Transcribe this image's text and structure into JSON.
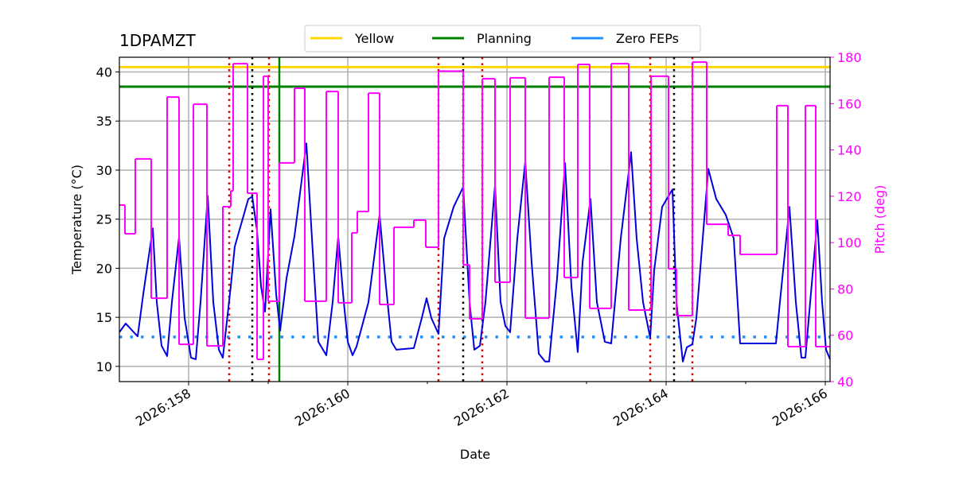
{
  "chart_data": {
    "type": "line",
    "title": "1DPAMZT",
    "xlabel": "Date",
    "ylabel": "Temperature (°C)",
    "y2label": "Pitch (deg)",
    "y2color": "#ff00ff",
    "xlim": [
      157.13,
      166.06
    ],
    "xticks": [
      {
        "value": 158,
        "label": "2026:158"
      },
      {
        "value": 160,
        "label": "2026:160"
      },
      {
        "value": 162,
        "label": "2026:162"
      },
      {
        "value": 164,
        "label": "2026:164"
      },
      {
        "value": 166,
        "label": "2026:166"
      }
    ],
    "xminorticks": [
      159,
      161,
      163,
      165
    ],
    "ylim": [
      8.45,
      41.5
    ],
    "yticks": [
      10,
      15,
      20,
      25,
      30,
      35,
      40
    ],
    "y2lim": [
      40,
      180
    ],
    "y2ticks": [
      40,
      60,
      80,
      100,
      120,
      140,
      160,
      180
    ],
    "grid": true,
    "legend": "upper center",
    "hlines": [
      {
        "name": "Yellow",
        "value": 40.5,
        "color": "#ffd700",
        "style": "solid"
      },
      {
        "name": "Planning",
        "value": 38.5,
        "color": "#008000",
        "style": "solid"
      },
      {
        "name": "Zero FEPs",
        "value": 13,
        "color": "#1e90ff",
        "style": "dotted"
      }
    ],
    "vlines": [
      {
        "x": 158.51,
        "color": "#dd0000",
        "style": "dotted"
      },
      {
        "x": 159.01,
        "color": "#dd0000",
        "style": "dotted"
      },
      {
        "x": 161.14,
        "color": "#dd0000",
        "style": "dotted"
      },
      {
        "x": 161.69,
        "color": "#dd0000",
        "style": "dotted"
      },
      {
        "x": 163.8,
        "color": "#dd0000",
        "style": "dotted"
      },
      {
        "x": 164.33,
        "color": "#dd0000",
        "style": "dotted"
      },
      {
        "x": 158.8,
        "color": "#000000",
        "style": "dotted"
      },
      {
        "x": 161.45,
        "color": "#000000",
        "style": "dotted"
      },
      {
        "x": 164.1,
        "color": "#000000",
        "style": "dotted"
      },
      {
        "x": 159.14,
        "color": "#008000",
        "style": "solid"
      }
    ],
    "series": [
      {
        "color": "#0000dd",
        "axis": "y",
        "drawstyle": "default",
        "x": [
          157.13,
          157.21,
          157.33,
          157.36,
          157.43,
          157.55,
          157.6,
          157.66,
          157.73,
          157.79,
          157.88,
          157.95,
          158.03,
          158.09,
          158.15,
          158.24,
          158.31,
          158.38,
          158.43,
          158.53,
          158.58,
          158.75,
          158.8,
          158.86,
          158.91,
          158.96,
          159.03,
          159.1,
          159.15,
          159.23,
          159.33,
          159.48,
          159.55,
          159.63,
          159.73,
          159.81,
          159.88,
          159.95,
          160.0,
          160.06,
          160.11,
          160.18,
          160.26,
          160.4,
          160.48,
          160.55,
          160.61,
          160.83,
          160.93,
          160.99,
          161.05,
          161.14,
          161.21,
          161.33,
          161.45,
          161.53,
          161.59,
          161.66,
          161.73,
          161.85,
          161.92,
          161.98,
          162.04,
          162.13,
          162.23,
          162.31,
          162.4,
          162.48,
          162.53,
          162.63,
          162.73,
          162.81,
          162.89,
          162.95,
          163.05,
          163.13,
          163.23,
          163.31,
          163.43,
          163.56,
          163.63,
          163.71,
          163.8,
          163.85,
          163.95,
          164.08,
          164.13,
          164.21,
          164.26,
          164.33,
          164.38,
          164.53,
          164.63,
          164.75,
          164.85,
          164.93,
          165.38,
          165.43,
          165.55,
          165.63,
          165.7,
          165.75,
          165.81,
          165.9,
          165.96,
          166.01,
          166.06
        ],
        "values": [
          13.48,
          14.37,
          13.31,
          13.07,
          17.36,
          24.07,
          16.55,
          12.1,
          11.05,
          16.55,
          23.18,
          14.93,
          10.89,
          10.73,
          16.55,
          27.38,
          16.55,
          11.7,
          10.89,
          18.17,
          22.21,
          27.06,
          27.3,
          23.82,
          18.17,
          15.58,
          26.01,
          17.36,
          13.64,
          18.97,
          23.26,
          32.72,
          23.02,
          12.51,
          11.13,
          16.55,
          23.26,
          16.55,
          12.51,
          11.13,
          12.02,
          14.12,
          16.55,
          25.44,
          18.17,
          12.51,
          11.7,
          11.86,
          14.93,
          16.95,
          14.93,
          13.31,
          23.02,
          26.25,
          28.27,
          16.55,
          11.7,
          12.1,
          16.55,
          28.43,
          16.55,
          14.12,
          13.48,
          23.02,
          30.86,
          20.59,
          11.29,
          10.49,
          10.49,
          18.97,
          30.7,
          18.17,
          11.46,
          20.59,
          27.06,
          16.55,
          12.51,
          12.34,
          23.02,
          31.83,
          23.02,
          16.55,
          12.91,
          19.78,
          26.25,
          28.03,
          16.55,
          10.49,
          11.94,
          12.26,
          14.93,
          30.13,
          27.06,
          25.44,
          23.02,
          12.34,
          12.34,
          16.55,
          26.25,
          16.55,
          10.89,
          10.89,
          16.55,
          24.87,
          16.55,
          11.7,
          10.73
        ]
      },
      {
        "color": "#ff00ff",
        "axis": "y2",
        "drawstyle": "steps-post",
        "x": [
          157.13,
          157.2,
          157.33,
          157.53,
          157.73,
          157.88,
          158.06,
          158.23,
          158.43,
          158.53,
          158.56,
          158.74,
          158.86,
          158.94,
          159.0,
          159.14,
          159.33,
          159.46,
          159.73,
          159.88,
          160.05,
          160.12,
          160.26,
          160.4,
          160.58,
          160.83,
          160.98,
          161.14,
          161.45,
          161.53,
          161.69,
          161.85,
          162.04,
          162.23,
          162.53,
          162.72,
          162.89,
          163.04,
          163.31,
          163.53,
          163.81,
          164.03,
          164.13,
          164.33,
          164.51,
          164.78,
          164.93,
          165.39,
          165.53,
          165.75,
          165.88,
          166.06
        ],
        "values": [
          116.2,
          103.8,
          136.1,
          76.0,
          162.8,
          56.1,
          159.7,
          55.4,
          115.5,
          122.3,
          177.2,
          121.3,
          49.6,
          171.8,
          74.7,
          134.4,
          166.6,
          74.7,
          165.2,
          74.0,
          104.2,
          113.4,
          164.5,
          73.3,
          106.6,
          109.7,
          98.0,
          174.0,
          90.4,
          67.1,
          170.7,
          82.9,
          171.1,
          67.4,
          171.4,
          84.9,
          176.9,
          71.6,
          177.2,
          70.9,
          171.8,
          88.7,
          68.5,
          177.9,
          107.9,
          103.1,
          94.9,
          159.1,
          55.1,
          159.1,
          55.1,
          55.1
        ]
      }
    ]
  }
}
